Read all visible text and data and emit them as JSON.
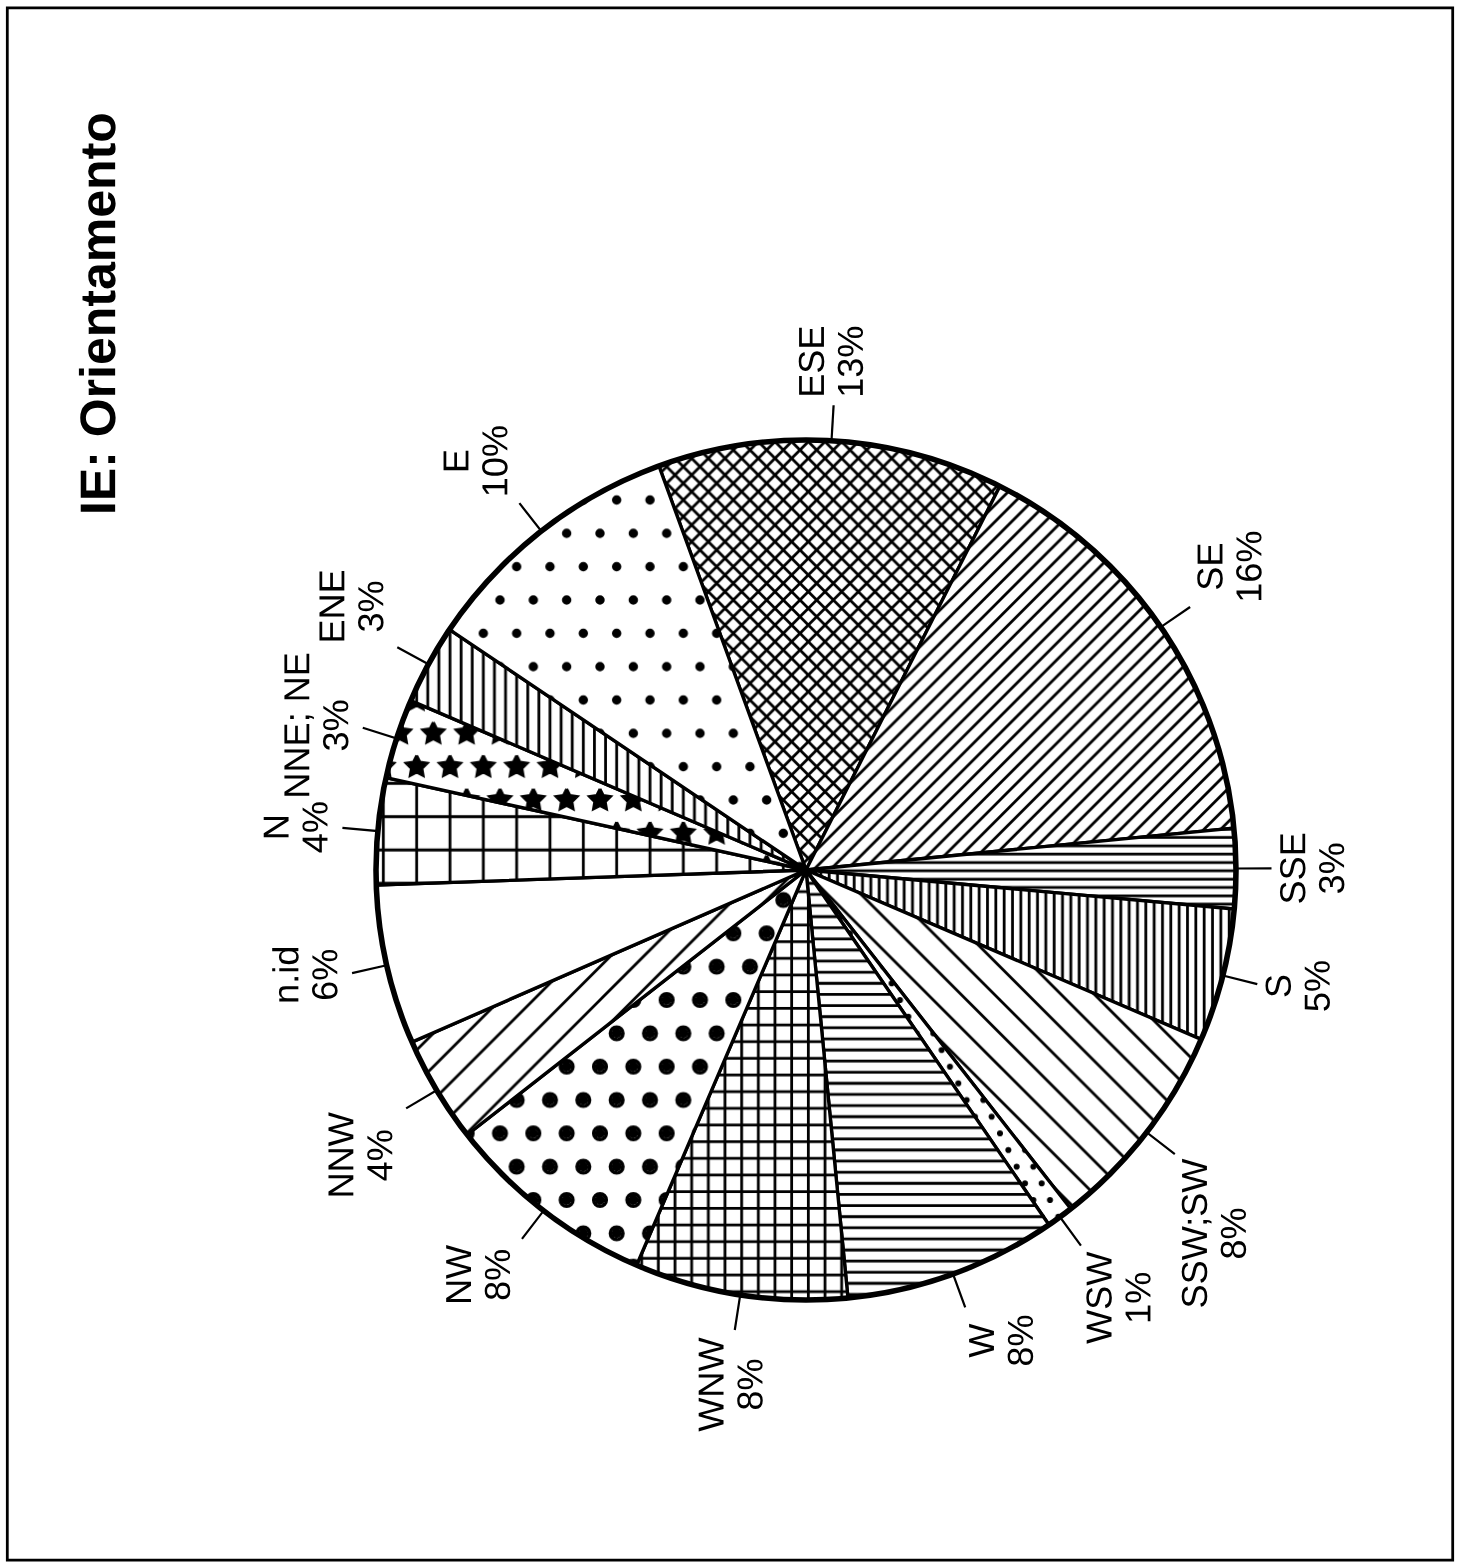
{
  "chart_data": {
    "type": "pie",
    "title": "IE: Orientamento",
    "categories": [
      "ESE",
      "SE",
      "SSE",
      "S",
      "SSW;SW",
      "WSW",
      "W",
      "WNW",
      "NW",
      "NNW",
      "n.id",
      "N",
      "NNE; NE",
      "ENE",
      "E"
    ],
    "values": [
      13,
      16,
      3,
      5,
      8,
      1,
      8,
      8,
      8,
      4,
      6,
      4,
      3,
      3,
      10
    ],
    "value_labels": [
      "13%",
      "16%",
      "3%",
      "5%",
      "8%",
      "1%",
      "8%",
      "8%",
      "8%",
      "4%",
      "6%",
      "4%",
      "3%",
      "3%",
      "10%"
    ],
    "legend": false
  }
}
